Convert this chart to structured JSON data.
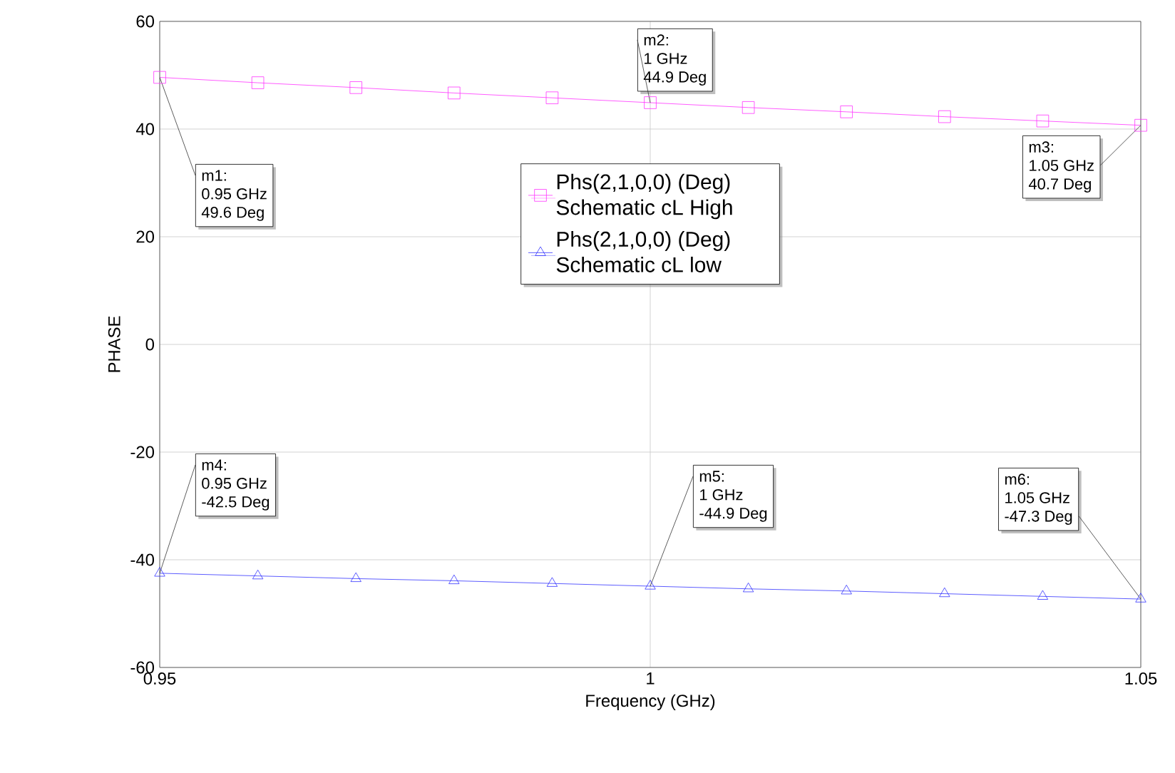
{
  "chart_data": {
    "type": "line",
    "xlabel": "Frequency (GHz)",
    "ylabel": "PHASE",
    "x": [
      0.95,
      0.96,
      0.97,
      0.98,
      0.99,
      1.0,
      1.01,
      1.02,
      1.03,
      1.04,
      1.05
    ],
    "series": [
      {
        "name": "Phs(2,1,0,0) (Deg) Schematic cL High",
        "color": "#ff33ff",
        "marker": "square",
        "values": [
          49.6,
          48.6,
          47.7,
          46.7,
          45.8,
          44.9,
          44.0,
          43.2,
          42.3,
          41.5,
          40.7
        ]
      },
      {
        "name": "Phs(2,1,0,0) (Deg) Schematic cL low",
        "color": "#3333ff",
        "marker": "triangle",
        "values": [
          -42.5,
          -43.0,
          -43.5,
          -43.9,
          -44.4,
          -44.9,
          -45.4,
          -45.8,
          -46.3,
          -46.8,
          -47.3
        ]
      }
    ],
    "xlim": [
      0.95,
      1.05
    ],
    "xticks": [
      0.95,
      {
        "value": 1.0,
        "label": "1"
      },
      1.05
    ],
    "ylim": [
      -60,
      60
    ],
    "yticks": [
      -60,
      -40,
      -20,
      0,
      20,
      40,
      60
    ],
    "grid": true,
    "legend": "top",
    "line_style": "solid",
    "annotations": [
      {
        "text": "m1:",
        "x": 0.95,
        "y": 49.6
      },
      "0.95 GHz",
      "49.6 Deg",
      {
        "text": "m2:",
        "x": 1.0,
        "y": 44.9
      },
      "1 GHz",
      "44.9 Deg",
      "m3:",
      {
        "text": "1.05 GHz",
        "x": 1.05,
        "y": 40.7
      },
      "40.7 Deg",
      {
        "text": "m4:",
        "x": 0.95,
        "y": -42.5
      },
      "0.95 GHz",
      "-42.5 Deg",
      {
        "text": "m5:",
        "x": 1.0,
        "y": -44.9
      },
      "1 GHz",
      "-44.9 Deg",
      "m6:",
      "1.05 GHz",
      {
        "text": "-47.3 Deg",
        "x": 1.05,
        "y": -47.3
      }
    ]
  }
}
